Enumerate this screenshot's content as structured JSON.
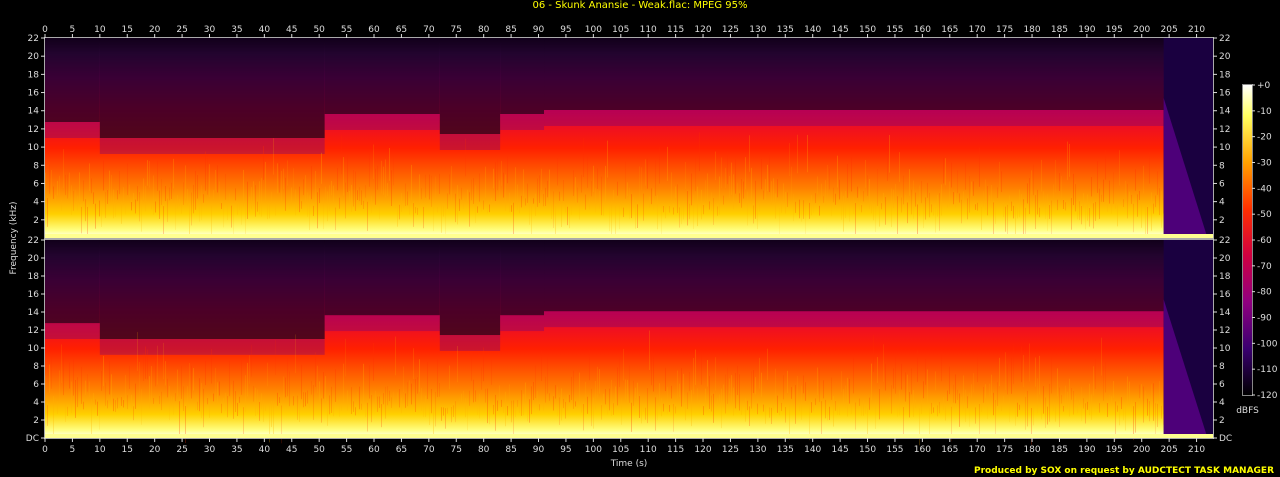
{
  "title": "06 - Skunk Anansie - Weak.flac: MPEG 95%",
  "credit": "Produced by SOX on request by AUDCTECT TASK MANAGER",
  "colors": {
    "title": "#ffff00",
    "text": "#dddddd",
    "background": "#000000"
  },
  "chart_data": {
    "type": "heatmap",
    "title": "06 - Skunk Anansie - Weak.flac: MPEG 95%",
    "xlabel": "Time (s)",
    "ylabel": "Frequency (kHz)",
    "xlim": [
      0,
      213
    ],
    "ylim": [
      0,
      22
    ],
    "x_ticks": [
      0,
      5,
      10,
      15,
      20,
      25,
      30,
      35,
      40,
      45,
      50,
      55,
      60,
      65,
      70,
      75,
      80,
      85,
      90,
      95,
      100,
      105,
      110,
      115,
      120,
      125,
      130,
      135,
      140,
      145,
      150,
      155,
      160,
      165,
      170,
      175,
      180,
      185,
      190,
      195,
      200,
      205,
      210
    ],
    "y_ticks": [
      "DC",
      "2",
      "4",
      "6",
      "8",
      "10",
      "12",
      "14",
      "16",
      "18",
      "20",
      "22"
    ],
    "channels": 2,
    "colorbar": {
      "label": "dBFS",
      "ticks": [
        "+0",
        "-10",
        "-20",
        "-30",
        "-40",
        "-50",
        "-60",
        "-70",
        "-80",
        "-90",
        "-100",
        "-110",
        "-120"
      ],
      "range": [
        -120,
        0
      ]
    },
    "segments": [
      {
        "start": 0,
        "end": 10,
        "intensity": 0.58
      },
      {
        "start": 10,
        "end": 51,
        "intensity": 0.5
      },
      {
        "start": 51,
        "end": 72,
        "intensity": 0.62
      },
      {
        "start": 72,
        "end": 83,
        "intensity": 0.52
      },
      {
        "start": 83,
        "end": 91,
        "intensity": 0.62
      },
      {
        "start": 91,
        "end": 204,
        "intensity": 0.64
      },
      {
        "start": 204,
        "end": 213,
        "intensity": 0.12
      }
    ],
    "grid": false
  }
}
